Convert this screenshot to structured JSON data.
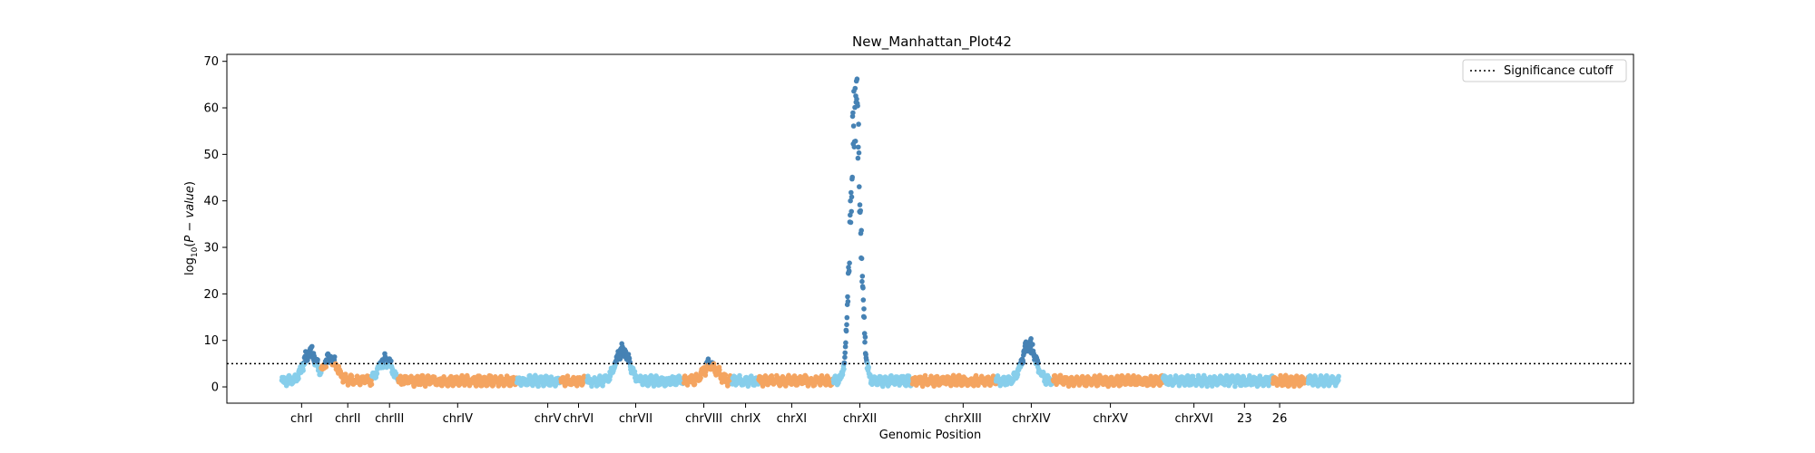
{
  "chart_data": {
    "type": "scatter",
    "title": "New_Manhattan_Plot42",
    "xlabel": "Genomic Position",
    "ylabel": "log₁₀(P − value)",
    "ylim": [
      -3.5,
      71.5
    ],
    "yticks": [
      0,
      10,
      20,
      30,
      40,
      50,
      60,
      70
    ],
    "significance_cutoff": 5,
    "legend": {
      "label": "Significance cutoff",
      "position": "top-right",
      "style": "dotted"
    },
    "colors": {
      "light_blue": "#87CEEB",
      "orange": "#F4A460",
      "dark_blue": "#4682B4",
      "cutoff": "#000000"
    },
    "x_range": [
      0,
      32
    ],
    "chromosomes": [
      {
        "label": "chrI",
        "start": 1.25,
        "end": 2.15,
        "tick": 1.7,
        "color": "light_blue"
      },
      {
        "label": "chrII",
        "start": 2.15,
        "end": 3.3,
        "tick": 2.75,
        "color": "orange"
      },
      {
        "label": "chrIII",
        "start": 3.3,
        "end": 3.9,
        "tick": 3.7,
        "color": "light_blue"
      },
      {
        "label": "chrIV",
        "start": 3.9,
        "end": 6.6,
        "tick": 5.25,
        "color": "orange"
      },
      {
        "label": "chrV",
        "start": 6.6,
        "end": 7.6,
        "tick": 7.3,
        "color": "light_blue"
      },
      {
        "label": "chrVI",
        "start": 7.6,
        "end": 8.2,
        "tick": 8.0,
        "color": "orange"
      },
      {
        "label": "chrVII",
        "start": 8.2,
        "end": 10.4,
        "tick": 9.3,
        "color": "light_blue"
      },
      {
        "label": "chrVIII",
        "start": 10.4,
        "end": 11.5,
        "tick": 10.85,
        "color": "orange"
      },
      {
        "label": "chrIX",
        "start": 11.5,
        "end": 12.1,
        "tick": 11.8,
        "color": "light_blue"
      },
      {
        "label": "chrXI",
        "start": 12.1,
        "end": 13.8,
        "tick": 12.85,
        "color": "orange"
      },
      {
        "label": "chrXII",
        "start": 13.8,
        "end": 15.6,
        "tick": 14.4,
        "color": "light_blue"
      },
      {
        "label": "chrXIII",
        "start": 15.6,
        "end": 17.5,
        "tick": 16.75,
        "color": "orange"
      },
      {
        "label": "chrXIV",
        "start": 17.5,
        "end": 18.8,
        "tick": 18.3,
        "color": "light_blue"
      },
      {
        "label": "chrXV",
        "start": 18.8,
        "end": 21.3,
        "tick": 20.1,
        "color": "orange"
      },
      {
        "label": "chrXVI",
        "start": 21.3,
        "end": 23.8,
        "tick": 22.0,
        "color": "light_blue"
      },
      {
        "label": "23",
        "start": 23.8,
        "end": 24.6,
        "tick": 23.15,
        "color": "orange"
      },
      {
        "label": "26",
        "start": 24.6,
        "end": 25.3,
        "tick": 23.95,
        "color": "light_blue"
      }
    ],
    "peaks": [
      {
        "chromosome": "chrI",
        "x": 1.9,
        "max": 7.0
      },
      {
        "chromosome": "chrII",
        "x": 2.35,
        "max": 5.5
      },
      {
        "chromosome": "chrIII",
        "x": 3.6,
        "max": 5.0
      },
      {
        "chromosome": "chrVII",
        "x": 9.0,
        "max": 7.5
      },
      {
        "chromosome": "chrVIII",
        "x": 11.0,
        "max": 4.0
      },
      {
        "chromosome": "chrXII",
        "x": 14.3,
        "max": 67.5
      },
      {
        "chromosome": "chrXIV",
        "x": 18.25,
        "max": 8.5
      },
      {
        "chromosome": "26",
        "x": 23.5,
        "max": 5.5
      }
    ]
  }
}
